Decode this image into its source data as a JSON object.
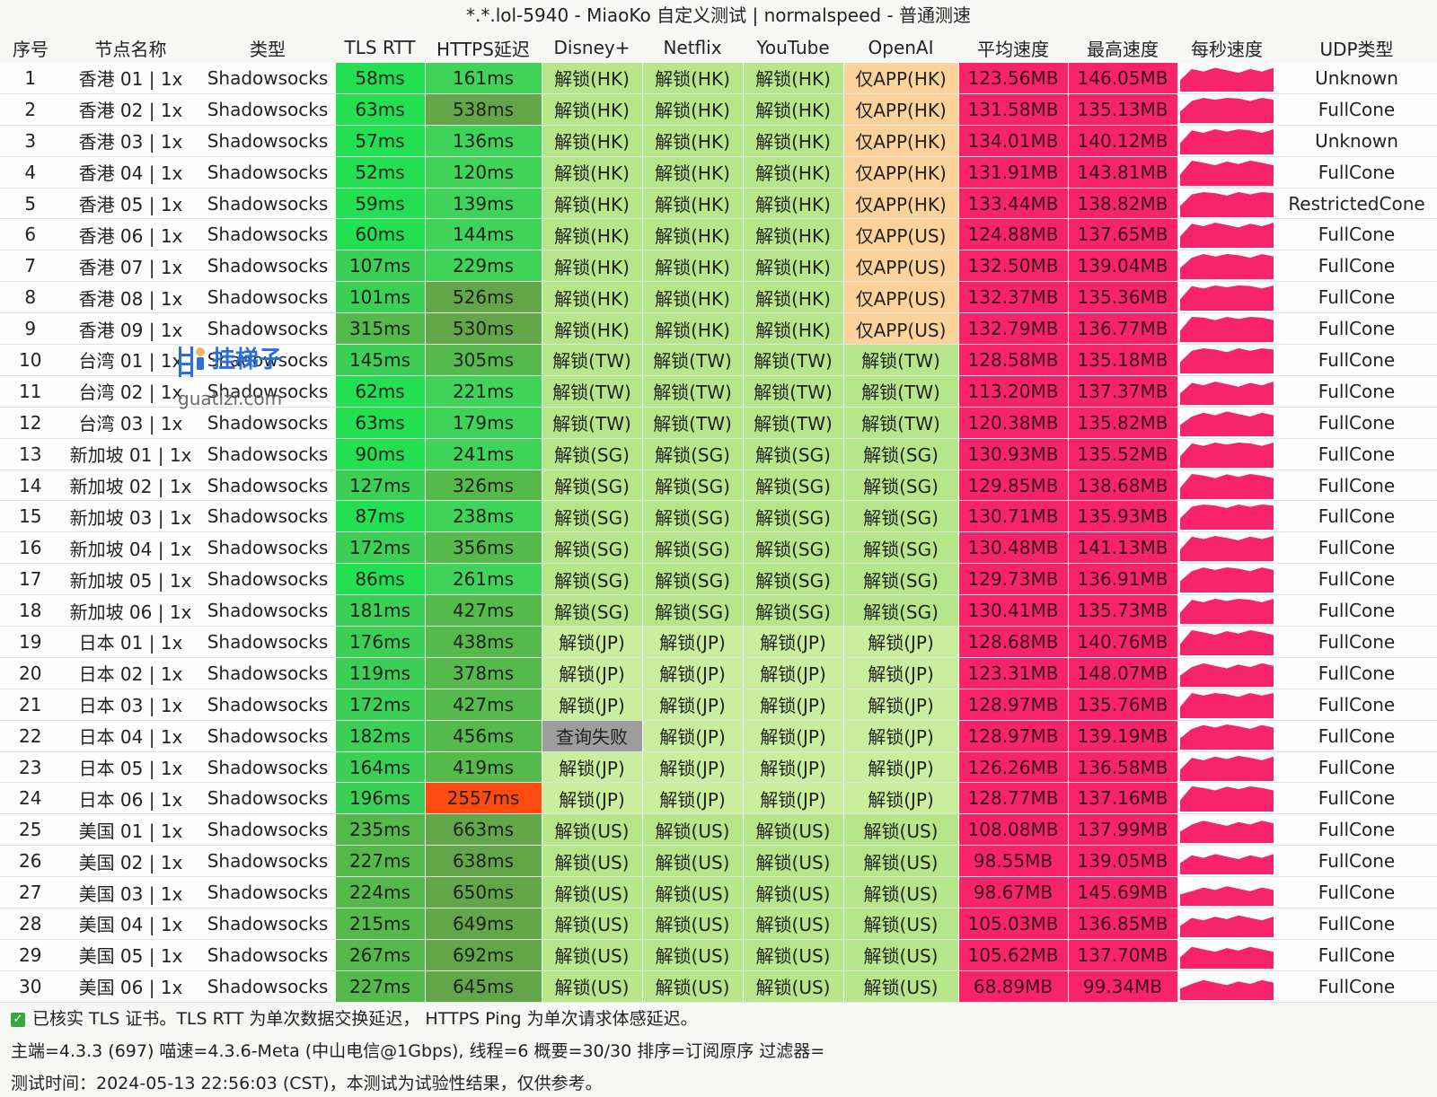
{
  "window": {
    "title": "*.*.lol-5940 - MiaoKo 自定义测试 | normalspeed - 普通测速"
  },
  "table": {
    "headers": [
      "序号",
      "节点名称",
      "类型",
      "TLS RTT",
      "HTTPS延迟",
      "Disney+",
      "Netflix",
      "YouTube",
      "OpenAI",
      "平均速度",
      "最高速度",
      "每秒速度",
      "UDP类型"
    ],
    "rows": [
      {
        "no": "1",
        "name": "香港 01 | 1x",
        "type": "Shadowsocks",
        "tls": "58ms",
        "https": "161ms",
        "disney": "解锁(HK)",
        "netflix": "解锁(HK)",
        "youtube": "解锁(HK)",
        "openai": "仅APP(HK)",
        "avg": "123.56MB",
        "max": "146.05MB",
        "udp": "Unknown"
      },
      {
        "no": "2",
        "name": "香港 02 | 1x",
        "type": "Shadowsocks",
        "tls": "63ms",
        "https": "538ms",
        "disney": "解锁(HK)",
        "netflix": "解锁(HK)",
        "youtube": "解锁(HK)",
        "openai": "仅APP(HK)",
        "avg": "131.58MB",
        "max": "135.13MB",
        "udp": "FullCone"
      },
      {
        "no": "3",
        "name": "香港 03 | 1x",
        "type": "Shadowsocks",
        "tls": "57ms",
        "https": "136ms",
        "disney": "解锁(HK)",
        "netflix": "解锁(HK)",
        "youtube": "解锁(HK)",
        "openai": "仅APP(HK)",
        "avg": "134.01MB",
        "max": "140.12MB",
        "udp": "Unknown"
      },
      {
        "no": "4",
        "name": "香港 04 | 1x",
        "type": "Shadowsocks",
        "tls": "52ms",
        "https": "120ms",
        "disney": "解锁(HK)",
        "netflix": "解锁(HK)",
        "youtube": "解锁(HK)",
        "openai": "仅APP(HK)",
        "avg": "131.91MB",
        "max": "143.81MB",
        "udp": "FullCone"
      },
      {
        "no": "5",
        "name": "香港 05 | 1x",
        "type": "Shadowsocks",
        "tls": "59ms",
        "https": "139ms",
        "disney": "解锁(HK)",
        "netflix": "解锁(HK)",
        "youtube": "解锁(HK)",
        "openai": "仅APP(HK)",
        "avg": "133.44MB",
        "max": "138.82MB",
        "udp": "RestrictedCone"
      },
      {
        "no": "6",
        "name": "香港 06 | 1x",
        "type": "Shadowsocks",
        "tls": "60ms",
        "https": "144ms",
        "disney": "解锁(HK)",
        "netflix": "解锁(HK)",
        "youtube": "解锁(HK)",
        "openai": "仅APP(US)",
        "avg": "124.88MB",
        "max": "137.65MB",
        "udp": "FullCone"
      },
      {
        "no": "7",
        "name": "香港 07 | 1x",
        "type": "Shadowsocks",
        "tls": "107ms",
        "https": "229ms",
        "disney": "解锁(HK)",
        "netflix": "解锁(HK)",
        "youtube": "解锁(HK)",
        "openai": "仅APP(US)",
        "avg": "132.50MB",
        "max": "139.04MB",
        "udp": "FullCone"
      },
      {
        "no": "8",
        "name": "香港 08 | 1x",
        "type": "Shadowsocks",
        "tls": "101ms",
        "https": "526ms",
        "disney": "解锁(HK)",
        "netflix": "解锁(HK)",
        "youtube": "解锁(HK)",
        "openai": "仅APP(US)",
        "avg": "132.37MB",
        "max": "135.36MB",
        "udp": "FullCone"
      },
      {
        "no": "9",
        "name": "香港 09 | 1x",
        "type": "Shadowsocks",
        "tls": "315ms",
        "https": "530ms",
        "disney": "解锁(HK)",
        "netflix": "解锁(HK)",
        "youtube": "解锁(HK)",
        "openai": "仅APP(US)",
        "avg": "132.79MB",
        "max": "136.77MB",
        "udp": "FullCone"
      },
      {
        "no": "10",
        "name": "台湾 01 | 1x",
        "type": "Shadowsocks",
        "tls": "145ms",
        "https": "305ms",
        "disney": "解锁(TW)",
        "netflix": "解锁(TW)",
        "youtube": "解锁(TW)",
        "openai": "解锁(TW)",
        "avg": "128.58MB",
        "max": "135.18MB",
        "udp": "FullCone"
      },
      {
        "no": "11",
        "name": "台湾 02 | 1x",
        "type": "Shadowsocks",
        "tls": "62ms",
        "https": "221ms",
        "disney": "解锁(TW)",
        "netflix": "解锁(TW)",
        "youtube": "解锁(TW)",
        "openai": "解锁(TW)",
        "avg": "113.20MB",
        "max": "137.37MB",
        "udp": "FullCone"
      },
      {
        "no": "12",
        "name": "台湾 03 | 1x",
        "type": "Shadowsocks",
        "tls": "63ms",
        "https": "179ms",
        "disney": "解锁(TW)",
        "netflix": "解锁(TW)",
        "youtube": "解锁(TW)",
        "openai": "解锁(TW)",
        "avg": "120.38MB",
        "max": "135.82MB",
        "udp": "FullCone"
      },
      {
        "no": "13",
        "name": "新加坡 01 | 1x",
        "type": "Shadowsocks",
        "tls": "90ms",
        "https": "241ms",
        "disney": "解锁(SG)",
        "netflix": "解锁(SG)",
        "youtube": "解锁(SG)",
        "openai": "解锁(SG)",
        "avg": "130.93MB",
        "max": "135.52MB",
        "udp": "FullCone"
      },
      {
        "no": "14",
        "name": "新加坡 02 | 1x",
        "type": "Shadowsocks",
        "tls": "127ms",
        "https": "326ms",
        "disney": "解锁(SG)",
        "netflix": "解锁(SG)",
        "youtube": "解锁(SG)",
        "openai": "解锁(SG)",
        "avg": "129.85MB",
        "max": "138.68MB",
        "udp": "FullCone"
      },
      {
        "no": "15",
        "name": "新加坡 03 | 1x",
        "type": "Shadowsocks",
        "tls": "87ms",
        "https": "238ms",
        "disney": "解锁(SG)",
        "netflix": "解锁(SG)",
        "youtube": "解锁(SG)",
        "openai": "解锁(SG)",
        "avg": "130.71MB",
        "max": "135.93MB",
        "udp": "FullCone"
      },
      {
        "no": "16",
        "name": "新加坡 04 | 1x",
        "type": "Shadowsocks",
        "tls": "172ms",
        "https": "356ms",
        "disney": "解锁(SG)",
        "netflix": "解锁(SG)",
        "youtube": "解锁(SG)",
        "openai": "解锁(SG)",
        "avg": "130.48MB",
        "max": "141.13MB",
        "udp": "FullCone"
      },
      {
        "no": "17",
        "name": "新加坡 05 | 1x",
        "type": "Shadowsocks",
        "tls": "86ms",
        "https": "261ms",
        "disney": "解锁(SG)",
        "netflix": "解锁(SG)",
        "youtube": "解锁(SG)",
        "openai": "解锁(SG)",
        "avg": "129.73MB",
        "max": "136.91MB",
        "udp": "FullCone"
      },
      {
        "no": "18",
        "name": "新加坡 06 | 1x",
        "type": "Shadowsocks",
        "tls": "181ms",
        "https": "427ms",
        "disney": "解锁(SG)",
        "netflix": "解锁(SG)",
        "youtube": "解锁(SG)",
        "openai": "解锁(SG)",
        "avg": "130.41MB",
        "max": "135.73MB",
        "udp": "FullCone"
      },
      {
        "no": "19",
        "name": "日本 01 | 1x",
        "type": "Shadowsocks",
        "tls": "176ms",
        "https": "438ms",
        "disney": "解锁(JP)",
        "netflix": "解锁(JP)",
        "youtube": "解锁(JP)",
        "openai": "解锁(JP)",
        "avg": "128.68MB",
        "max": "140.76MB",
        "udp": "FullCone"
      },
      {
        "no": "20",
        "name": "日本 02 | 1x",
        "type": "Shadowsocks",
        "tls": "119ms",
        "https": "378ms",
        "disney": "解锁(JP)",
        "netflix": "解锁(JP)",
        "youtube": "解锁(JP)",
        "openai": "解锁(JP)",
        "avg": "123.31MB",
        "max": "148.07MB",
        "udp": "FullCone"
      },
      {
        "no": "21",
        "name": "日本 03 | 1x",
        "type": "Shadowsocks",
        "tls": "172ms",
        "https": "427ms",
        "disney": "解锁(JP)",
        "netflix": "解锁(JP)",
        "youtube": "解锁(JP)",
        "openai": "解锁(JP)",
        "avg": "128.97MB",
        "max": "135.76MB",
        "udp": "FullCone"
      },
      {
        "no": "22",
        "name": "日本 04 | 1x",
        "type": "Shadowsocks",
        "tls": "182ms",
        "https": "456ms",
        "disney": "查询失败",
        "netflix": "解锁(JP)",
        "youtube": "解锁(JP)",
        "openai": "解锁(JP)",
        "avg": "128.97MB",
        "max": "139.19MB",
        "udp": "FullCone"
      },
      {
        "no": "23",
        "name": "日本 05 | 1x",
        "type": "Shadowsocks",
        "tls": "164ms",
        "https": "419ms",
        "disney": "解锁(JP)",
        "netflix": "解锁(JP)",
        "youtube": "解锁(JP)",
        "openai": "解锁(JP)",
        "avg": "126.26MB",
        "max": "136.58MB",
        "udp": "FullCone"
      },
      {
        "no": "24",
        "name": "日本 06 | 1x",
        "type": "Shadowsocks",
        "tls": "196ms",
        "https": "2557ms",
        "disney": "解锁(JP)",
        "netflix": "解锁(JP)",
        "youtube": "解锁(JP)",
        "openai": "解锁(JP)",
        "avg": "128.77MB",
        "max": "137.16MB",
        "udp": "FullCone"
      },
      {
        "no": "25",
        "name": "美国 01 | 1x",
        "type": "Shadowsocks",
        "tls": "235ms",
        "https": "663ms",
        "disney": "解锁(US)",
        "netflix": "解锁(US)",
        "youtube": "解锁(US)",
        "openai": "解锁(US)",
        "avg": "108.08MB",
        "max": "137.99MB",
        "udp": "FullCone"
      },
      {
        "no": "26",
        "name": "美国 02 | 1x",
        "type": "Shadowsocks",
        "tls": "227ms",
        "https": "638ms",
        "disney": "解锁(US)",
        "netflix": "解锁(US)",
        "youtube": "解锁(US)",
        "openai": "解锁(US)",
        "avg": "98.55MB",
        "max": "139.05MB",
        "udp": "FullCone"
      },
      {
        "no": "27",
        "name": "美国 03 | 1x",
        "type": "Shadowsocks",
        "tls": "224ms",
        "https": "650ms",
        "disney": "解锁(US)",
        "netflix": "解锁(US)",
        "youtube": "解锁(US)",
        "openai": "解锁(US)",
        "avg": "98.67MB",
        "max": "145.69MB",
        "udp": "FullCone"
      },
      {
        "no": "28",
        "name": "美国 04 | 1x",
        "type": "Shadowsocks",
        "tls": "215ms",
        "https": "649ms",
        "disney": "解锁(US)",
        "netflix": "解锁(US)",
        "youtube": "解锁(US)",
        "openai": "解锁(US)",
        "avg": "105.03MB",
        "max": "136.85MB",
        "udp": "FullCone"
      },
      {
        "no": "29",
        "name": "美国 05 | 1x",
        "type": "Shadowsocks",
        "tls": "267ms",
        "https": "692ms",
        "disney": "解锁(US)",
        "netflix": "解锁(US)",
        "youtube": "解锁(US)",
        "openai": "解锁(US)",
        "avg": "105.62MB",
        "max": "137.70MB",
        "udp": "FullCone"
      },
      {
        "no": "30",
        "name": "美国 06 | 1x",
        "type": "Shadowsocks",
        "tls": "227ms",
        "https": "645ms",
        "disney": "解锁(US)",
        "netflix": "解锁(US)",
        "youtube": "解锁(US)",
        "openai": "解锁(US)",
        "avg": "68.89MB",
        "max": "99.34MB",
        "udp": "FullCone"
      }
    ]
  },
  "footer": {
    "line1": "已核实 TLS 证书。TLS RTT 为单次数据交换延迟， HTTPS Ping 为单次请求体感延迟。",
    "line2": "主端=4.3.3 (697) 喵速=4.3.6-Meta (中山电信@1Gbps), 线程=6 概要=30/30 排序=订阅原序 过滤器=",
    "line3": "测试时间：2024-05-13 22:56:03 (CST)，本测试为试验性结果，仅供参考。"
  },
  "watermark": {
    "text": "挂梯子",
    "url": "guatizi.com"
  },
  "colors": {
    "tls_fast": "#22e052",
    "https_fast": "#3fd35a",
    "https_slow": "#63a64a",
    "https_bad": "#ff4a12",
    "unlock": "#b7e68a",
    "app_only": "#fbd39a",
    "fail": "#9d9d9d",
    "speed": "#f7246b",
    "check": "#3aa63f"
  },
  "icons": {
    "footer_check": "check-box-icon",
    "watermark_logo": "ladder-person-icon"
  }
}
